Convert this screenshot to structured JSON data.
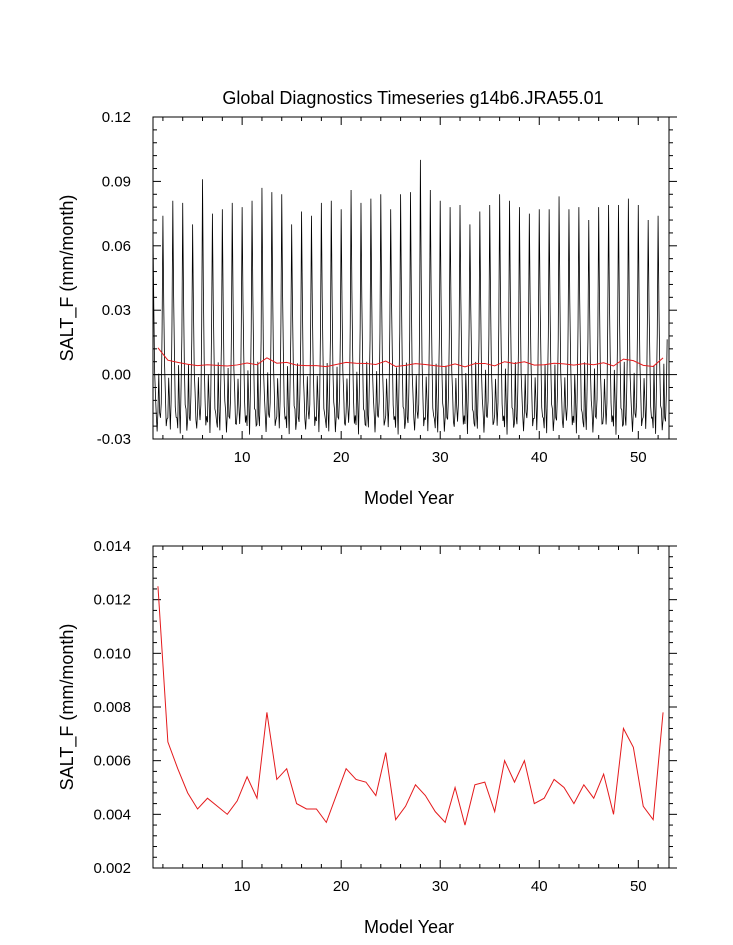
{
  "figure_title": "Global Diagnostics Timeseries g14b6.JRA55.01",
  "colors": {
    "monthly": "#000000",
    "annual": "#e41a1c",
    "axes": "#000000"
  },
  "chart_data": [
    {
      "type": "line",
      "title": "Global Diagnostics Timeseries g14b6.JRA55.01",
      "xlabel": "Model Year",
      "ylabel": "SALT_F (mm/month)",
      "xlim": [
        1,
        53.1
      ],
      "ylim": [
        -0.03,
        0.12
      ],
      "xticks": [
        10,
        20,
        30,
        40,
        50
      ],
      "xtick_labels": [
        "10",
        "20",
        "30",
        "40",
        "50"
      ],
      "yticks": [
        -0.03,
        0,
        0.03,
        0.06,
        0.09,
        0.12
      ],
      "ytick_labels": [
        "-0.03",
        "0.00",
        "0.03",
        "0.06",
        "0.09",
        "0.12"
      ],
      "zero_line": true,
      "grid": false,
      "series": [
        {
          "style": "monthly",
          "color": "#000000",
          "x_start": 1.0,
          "x_step": 0.08333,
          "seasonal_template": [
            0.068,
            0.03,
            0.005,
            -0.012,
            -0.02,
            -0.023,
            -0.021,
            0.002,
            -0.016,
            -0.024,
            -0.01,
            0.02
          ],
          "annual_peaks": [
            0.067,
            0.074,
            0.081,
            0.08,
            0.07,
            0.091,
            0.075,
            0.077,
            0.08,
            0.078,
            0.081,
            0.087,
            0.085,
            0.084,
            0.07,
            0.076,
            0.074,
            0.08,
            0.081,
            0.077,
            0.086,
            0.08,
            0.082,
            0.084,
            0.077,
            0.084,
            0.085,
            0.1,
            0.086,
            0.081,
            0.078,
            0.079,
            0.07,
            0.076,
            0.079,
            0.084,
            0.081,
            0.078,
            0.075,
            0.077,
            0.077,
            0.083,
            0.077,
            0.078,
            0.072,
            0.078,
            0.079,
            0.079,
            0.082,
            0.079,
            0.072,
            0.074
          ]
        },
        {
          "style": "annual",
          "color": "#e41a1c",
          "x": [
            1.5,
            2.5,
            3.5,
            4.5,
            5.5,
            6.5,
            7.5,
            8.5,
            9.5,
            10.5,
            11.5,
            12.5,
            13.5,
            14.5,
            15.5,
            16.5,
            17.5,
            18.5,
            19.5,
            20.5,
            21.5,
            22.5,
            23.5,
            24.5,
            25.5,
            26.5,
            27.5,
            28.5,
            29.5,
            30.5,
            31.5,
            32.5,
            33.5,
            34.5,
            35.5,
            36.5,
            37.5,
            38.5,
            39.5,
            40.5,
            41.5,
            42.5,
            43.5,
            44.5,
            45.5,
            46.5,
            47.5,
            48.5,
            49.5,
            50.5,
            51.5,
            52.5
          ],
          "values": [
            0.0125,
            0.0067,
            0.0057,
            0.0048,
            0.0042,
            0.0046,
            0.0043,
            0.004,
            0.0045,
            0.0054,
            0.0046,
            0.0078,
            0.0053,
            0.0057,
            0.0044,
            0.0042,
            0.0042,
            0.0037,
            0.0047,
            0.0057,
            0.0053,
            0.0052,
            0.0047,
            0.0063,
            0.0038,
            0.0043,
            0.0051,
            0.0047,
            0.0041,
            0.0037,
            0.005,
            0.0036,
            0.0051,
            0.0052,
            0.0041,
            0.006,
            0.0052,
            0.006,
            0.0044,
            0.0046,
            0.0053,
            0.005,
            0.0044,
            0.0051,
            0.0046,
            0.0055,
            0.004,
            0.0072,
            0.0065,
            0.0043,
            0.0038,
            0.0078
          ]
        }
      ]
    },
    {
      "type": "line",
      "title": "",
      "xlabel": "Model Year",
      "ylabel": "SALT_F (mm/month)",
      "xlim": [
        1,
        53.1
      ],
      "ylim": [
        0.002,
        0.014
      ],
      "xticks": [
        10,
        20,
        30,
        40,
        50
      ],
      "xtick_labels": [
        "10",
        "20",
        "30",
        "40",
        "50"
      ],
      "yticks": [
        0.002,
        0.004,
        0.006,
        0.008,
        0.01,
        0.012,
        0.014
      ],
      "ytick_labels": [
        "0.002",
        "0.004",
        "0.006",
        "0.008",
        "0.010",
        "0.012",
        "0.014"
      ],
      "grid": false,
      "series": [
        {
          "style": "annual",
          "color": "#e41a1c",
          "x": [
            1.5,
            2.5,
            3.5,
            4.5,
            5.5,
            6.5,
            7.5,
            8.5,
            9.5,
            10.5,
            11.5,
            12.5,
            13.5,
            14.5,
            15.5,
            16.5,
            17.5,
            18.5,
            19.5,
            20.5,
            21.5,
            22.5,
            23.5,
            24.5,
            25.5,
            26.5,
            27.5,
            28.5,
            29.5,
            30.5,
            31.5,
            32.5,
            33.5,
            34.5,
            35.5,
            36.5,
            37.5,
            38.5,
            39.5,
            40.5,
            41.5,
            42.5,
            43.5,
            44.5,
            45.5,
            46.5,
            47.5,
            48.5,
            49.5,
            50.5,
            51.5,
            52.5
          ],
          "values": [
            0.0125,
            0.0067,
            0.0057,
            0.0048,
            0.0042,
            0.0046,
            0.0043,
            0.004,
            0.0045,
            0.0054,
            0.0046,
            0.0078,
            0.0053,
            0.0057,
            0.0044,
            0.0042,
            0.0042,
            0.0037,
            0.0047,
            0.0057,
            0.0053,
            0.0052,
            0.0047,
            0.0063,
            0.0038,
            0.0043,
            0.0051,
            0.0047,
            0.0041,
            0.0037,
            0.005,
            0.0036,
            0.0051,
            0.0052,
            0.0041,
            0.006,
            0.0052,
            0.006,
            0.0044,
            0.0046,
            0.0053,
            0.005,
            0.0044,
            0.0051,
            0.0046,
            0.0055,
            0.004,
            0.0072,
            0.0065,
            0.0043,
            0.0038,
            0.0078
          ]
        }
      ]
    }
  ]
}
